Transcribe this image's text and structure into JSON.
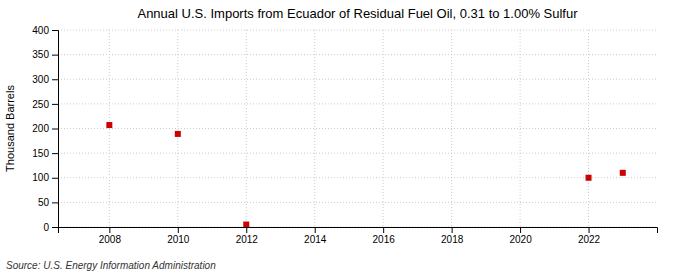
{
  "chart_data": {
    "type": "scatter",
    "title": "Annual U.S. Imports from Ecuador of Residual Fuel Oil, 0.31 to 1.00% Sulfur",
    "ylabel": "Thousand Barrels",
    "source": "Source: U.S. Energy Information Administration",
    "x": [
      2008,
      2010,
      2012,
      2022,
      2023
    ],
    "values": [
      207,
      189,
      5,
      100,
      110
    ],
    "color": "#cc0000",
    "marker": "square",
    "xlim": [
      2006.5,
      2024.0
    ],
    "ylim": [
      0,
      400
    ],
    "xticks": [
      2008,
      2010,
      2012,
      2014,
      2016,
      2018,
      2020,
      2022
    ],
    "yticks": [
      0,
      50,
      100,
      150,
      200,
      250,
      300,
      350,
      400
    ],
    "grid": true
  }
}
